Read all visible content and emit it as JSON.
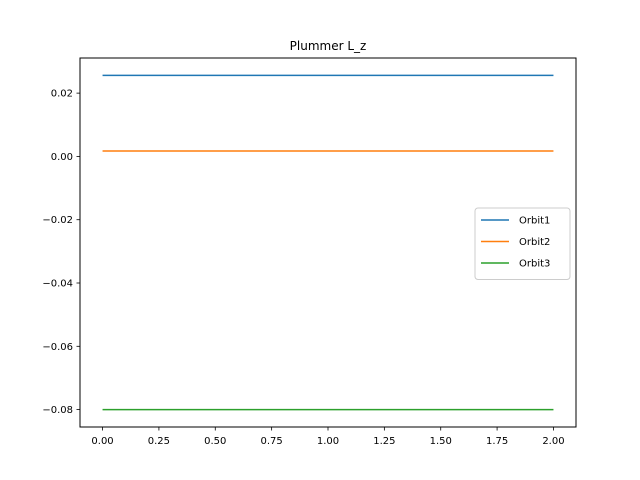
{
  "chart_data": {
    "type": "line",
    "title": "Plummer L_z",
    "xlabel": "",
    "ylabel": "",
    "xlim": [
      -0.1,
      2.1
    ],
    "ylim": [
      -0.0855,
      0.0311
    ],
    "x_ticks": [
      0.0,
      0.25,
      0.5,
      0.75,
      1.0,
      1.25,
      1.5,
      1.75,
      2.0
    ],
    "x_tick_labels": [
      "0.00",
      "0.25",
      "0.50",
      "0.75",
      "1.00",
      "1.25",
      "1.50",
      "1.75",
      "2.00"
    ],
    "y_ticks": [
      0.02,
      0.0,
      -0.02,
      -0.04,
      -0.06,
      -0.08
    ],
    "y_tick_labels": [
      "0.02",
      "0.00",
      "−0.02",
      "−0.04",
      "−0.06",
      "−0.08"
    ],
    "grid": false,
    "legend_position": "center-right",
    "x": [
      0.0,
      2.0
    ],
    "series": [
      {
        "name": "Orbit1",
        "color": "#1f77b4",
        "values": [
          0.0256,
          0.0256
        ]
      },
      {
        "name": "Orbit2",
        "color": "#ff7f0e",
        "values": [
          0.0017,
          0.0017
        ]
      },
      {
        "name": "Orbit3",
        "color": "#2ca02c",
        "values": [
          -0.08,
          -0.08
        ]
      }
    ]
  }
}
